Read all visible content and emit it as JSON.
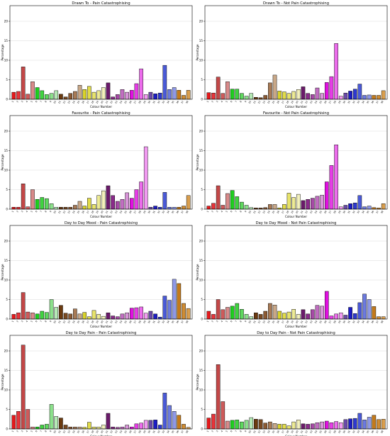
{
  "figure": {
    "xlabel": "Colour Number",
    "ylabel": "Percentage"
  },
  "palette": [
    "#e41a1c",
    "#e8343a",
    "#c44747",
    "#cf5a5a",
    "#d98a8a",
    "#1fcf1f",
    "#3fd43f",
    "#5ed85e",
    "#8ce08c",
    "#b5e8b5",
    "#6b3a10",
    "#7a4a22",
    "#8c5a33",
    "#a87a55",
    "#c9a888",
    "#d9d32a",
    "#e2dc4a",
    "#e8e46a",
    "#eeeb94",
    "#f3f1bb",
    "#6b1a6b",
    "#8a2a8a",
    "#a64aa6",
    "#c26ec2",
    "#d894d8",
    "#e010e0",
    "#e63ee6",
    "#ec6cec",
    "#f199f1",
    "#6b4aa8",
    "#1c1cc4",
    "#2d38cf",
    "#4a5ad8",
    "#6c7ae0",
    "#8e98e8",
    "#c47a1a",
    "#cf8c33",
    "#d99e4d",
    "#e2b070",
    "#eac598",
    "#0a0a0a",
    "#3a3a3a",
    "#6e6e6e",
    "#9a9a9a",
    "#c4c4c4",
    "#ffffff"
  ],
  "chart_data": [
    {
      "type": "bar",
      "title": "Drawn To - Pain Catastrophising",
      "xlabel": "Colour Number",
      "ylabel": "Percentage",
      "ylim": [
        0,
        24
      ],
      "yticks": [
        0,
        5,
        10,
        15,
        20
      ],
      "grid": true,
      "categories": [
        "1",
        "2",
        "3",
        "4",
        "5",
        "6",
        "7",
        "8",
        "9",
        "10",
        "11",
        "12",
        "13",
        "14",
        "15",
        "16",
        "17",
        "18",
        "19",
        "20",
        "21",
        "22",
        "23",
        "24",
        "25",
        "26",
        "27",
        "28",
        "29",
        "30",
        "31",
        "32",
        "33",
        "34",
        "35",
        "36",
        "37",
        "38"
      ],
      "values": [
        1.8,
        2.0,
        8.3,
        1.3,
        4.5,
        3.0,
        2.2,
        1.2,
        1.5,
        2.2,
        1.3,
        0.6,
        1.5,
        2.0,
        3.6,
        2.5,
        3.3,
        1.8,
        2.2,
        3.0,
        4.2,
        0.6,
        1.2,
        2.5,
        1.8,
        2.3,
        4.0,
        7.8,
        1.2,
        1.8,
        1.4,
        1.6,
        8.7,
        2.5,
        3.0,
        2.3,
        1.0,
        2.3
      ]
    },
    {
      "type": "bar",
      "title": "Drawn To - Not Pain Catastrophising",
      "xlabel": "Colour Number",
      "ylabel": "Percentage",
      "ylim": [
        0,
        24
      ],
      "yticks": [
        0,
        5,
        10,
        15,
        20
      ],
      "grid": true,
      "categories": [
        "1",
        "2",
        "3",
        "4",
        "5",
        "6",
        "7",
        "8",
        "9",
        "10",
        "11",
        "12",
        "13",
        "14",
        "15",
        "16",
        "17",
        "18",
        "19",
        "20",
        "21",
        "22",
        "23",
        "24",
        "25",
        "26",
        "27",
        "28",
        "29",
        "30",
        "31",
        "32",
        "33",
        "34",
        "35",
        "36",
        "37",
        "38"
      ],
      "values": [
        1.7,
        1.6,
        5.7,
        1.5,
        4.5,
        2.6,
        2.6,
        1.5,
        0.8,
        1.5,
        0.5,
        0.4,
        1.0,
        4.2,
        6.2,
        2.1,
        1.9,
        1.5,
        2.0,
        2.5,
        3.2,
        1.5,
        1.2,
        2.9,
        1.5,
        4.3,
        5.8,
        14.3,
        0.8,
        1.6,
        2.1,
        2.6,
        3.9,
        1.0,
        1.1,
        1.0,
        1.0,
        2.2
      ]
    },
    {
      "type": "bar",
      "title": "Favourite - Pain Catastrophising",
      "xlabel": "Colour Number",
      "ylabel": "Percentage",
      "ylim": [
        0,
        24
      ],
      "yticks": [
        0,
        5,
        10,
        15,
        20
      ],
      "grid": true,
      "categories": [
        "1",
        "2",
        "3",
        "4",
        "5",
        "6",
        "7",
        "8",
        "9",
        "10",
        "11",
        "12",
        "13",
        "14",
        "15",
        "16",
        "17",
        "18",
        "19",
        "20",
        "21",
        "22",
        "23",
        "24",
        "25",
        "26",
        "27",
        "28",
        "29",
        "30",
        "31",
        "32",
        "33",
        "34",
        "35",
        "36",
        "37",
        "38"
      ],
      "values": [
        0.5,
        0.5,
        6.5,
        0.6,
        5.0,
        2.5,
        3.0,
        2.7,
        1.4,
        0.5,
        0.5,
        0.5,
        0.5,
        1.0,
        2.0,
        0.8,
        2.8,
        1.2,
        3.5,
        4.7,
        6.0,
        3.5,
        2.0,
        2.5,
        4.2,
        2.8,
        5.0,
        7.0,
        16.0,
        0.5,
        0.8,
        0.5,
        4.3,
        0.5,
        0.5,
        0.5,
        0.8,
        3.5
      ]
    },
    {
      "type": "bar",
      "title": "Favourite - Not Pain Catastrophising",
      "xlabel": "Colour Number",
      "ylabel": "Percentage",
      "ylim": [
        0,
        24
      ],
      "yticks": [
        0,
        5,
        10,
        15,
        20
      ],
      "grid": true,
      "categories": [
        "1",
        "2",
        "3",
        "4",
        "5",
        "6",
        "7",
        "8",
        "9",
        "10",
        "11",
        "12",
        "13",
        "14",
        "15",
        "16",
        "17",
        "18",
        "19",
        "20",
        "21",
        "22",
        "23",
        "24",
        "25",
        "26",
        "27",
        "28",
        "29",
        "30",
        "31",
        "32",
        "33",
        "34",
        "35",
        "36",
        "37",
        "38"
      ],
      "values": [
        0.8,
        1.5,
        6.0,
        1.0,
        4.0,
        4.8,
        3.2,
        1.8,
        1.0,
        0.4,
        0.3,
        0.3,
        0.4,
        1.2,
        1.2,
        0.3,
        1.2,
        4.1,
        3.0,
        3.8,
        2.2,
        2.5,
        2.8,
        3.3,
        3.6,
        7.0,
        11.2,
        16.5,
        0.6,
        1.0,
        1.4,
        1.6,
        3.5,
        0.6,
        0.8,
        0.4,
        0.3,
        1.4
      ]
    },
    {
      "type": "bar",
      "title": "Day to Day Mood - Pain Catastrophising",
      "xlabel": "Colour Number",
      "ylabel": "Percentage",
      "ylim": [
        0,
        24
      ],
      "yticks": [
        0,
        5,
        10,
        15,
        20
      ],
      "grid": true,
      "categories": [
        "1",
        "2",
        "3",
        "4",
        "5",
        "6",
        "7",
        "8",
        "9",
        "10",
        "11",
        "12",
        "13",
        "14",
        "15",
        "16",
        "17",
        "18",
        "19",
        "20",
        "21",
        "22",
        "23",
        "24",
        "25",
        "26",
        "27",
        "28",
        "29",
        "30",
        "31",
        "32",
        "33",
        "34",
        "35",
        "36",
        "37",
        "38"
      ],
      "values": [
        1.2,
        1.6,
        6.8,
        1.8,
        1.6,
        1.3,
        2.0,
        1.7,
        5.0,
        3.0,
        3.5,
        1.5,
        1.3,
        2.6,
        1.3,
        1.7,
        0.6,
        2.2,
        1.2,
        0.7,
        1.6,
        0.8,
        0.6,
        1.3,
        1.6,
        2.8,
        2.9,
        3.1,
        1.5,
        2.0,
        1.3,
        0.5,
        5.9,
        4.8,
        10.2,
        9.1,
        4.0,
        2.7
      ]
    },
    {
      "type": "bar",
      "title": "Day to Day Mood - Not Pain Catastrophising",
      "xlabel": "Colour Number",
      "ylabel": "Percentage",
      "ylim": [
        0,
        24
      ],
      "yticks": [
        0,
        5,
        10,
        15,
        20
      ],
      "grid": true,
      "categories": [
        "1",
        "2",
        "3",
        "4",
        "5",
        "6",
        "7",
        "8",
        "9",
        "10",
        "11",
        "12",
        "13",
        "14",
        "15",
        "16",
        "17",
        "18",
        "19",
        "20",
        "21",
        "22",
        "23",
        "24",
        "25",
        "26",
        "27",
        "28",
        "29",
        "30",
        "31",
        "32",
        "33",
        "34",
        "35",
        "36",
        "37",
        "38"
      ],
      "values": [
        2.0,
        1.2,
        5.0,
        2.4,
        3.0,
        3.3,
        4.0,
        2.5,
        1.2,
        0.6,
        1.6,
        1.2,
        2.0,
        4.0,
        3.6,
        2.0,
        1.5,
        1.8,
        2.5,
        1.2,
        2.4,
        1.3,
        2.4,
        3.5,
        3.3,
        7.1,
        0.8,
        1.3,
        1.6,
        1.0,
        3.0,
        1.4,
        4.2,
        6.4,
        5.0,
        3.2,
        0.6,
        0.6
      ]
    },
    {
      "type": "bar",
      "title": "Day to Day Pain - Pain Catastrophising",
      "xlabel": "Colour Number",
      "ylabel": "Percentage",
      "ylim": [
        0,
        24
      ],
      "yticks": [
        0,
        5,
        10,
        15,
        20
      ],
      "grid": true,
      "categories": [
        "1",
        "2",
        "3",
        "4",
        "5",
        "6",
        "7",
        "8",
        "9",
        "10",
        "11",
        "12",
        "13",
        "14",
        "15",
        "16",
        "17",
        "18",
        "19",
        "20",
        "21",
        "22",
        "23",
        "24",
        "25",
        "26",
        "27",
        "28",
        "29",
        "30",
        "31",
        "32",
        "33",
        "34",
        "35",
        "36",
        "37",
        "38"
      ],
      "values": [
        3.5,
        4.5,
        21.5,
        5.0,
        0.5,
        0.5,
        1.0,
        1.2,
        6.3,
        3.2,
        2.8,
        1.0,
        0.5,
        0.5,
        0.5,
        0.4,
        1.7,
        0.5,
        0.5,
        1.0,
        4.0,
        0.5,
        0.4,
        0.5,
        1.0,
        0.5,
        1.3,
        1.5,
        2.2,
        2.2,
        2.3,
        1.0,
        9.2,
        6.0,
        4.5,
        3.5,
        1.2,
        0.4
      ]
    },
    {
      "type": "bar",
      "title": "Day to Day Pain - Not Pain Catastrophising",
      "xlabel": "Colour Number",
      "ylabel": "Percentage",
      "ylim": [
        0,
        24
      ],
      "yticks": [
        0,
        5,
        10,
        15,
        20
      ],
      "grid": true,
      "categories": [
        "1",
        "2",
        "3",
        "4",
        "5",
        "6",
        "7",
        "8",
        "9",
        "10",
        "11",
        "12",
        "13",
        "14",
        "15",
        "16",
        "17",
        "18",
        "19",
        "20",
        "21",
        "22",
        "23",
        "24",
        "25",
        "26",
        "27",
        "28",
        "29",
        "30",
        "31",
        "32",
        "33",
        "34",
        "35",
        "36",
        "37",
        "38"
      ],
      "values": [
        2.8,
        3.8,
        16.5,
        7.0,
        2.0,
        2.2,
        2.3,
        1.8,
        2.2,
        2.9,
        2.5,
        2.4,
        1.5,
        1.8,
        1.4,
        1.2,
        1.2,
        0.8,
        1.8,
        2.3,
        1.3,
        1.2,
        1.3,
        1.6,
        1.8,
        2.0,
        1.6,
        1.9,
        1.6,
        2.4,
        2.6,
        2.7,
        4.0,
        2.3,
        3.0,
        3.5,
        2.4,
        2.5
      ]
    }
  ]
}
